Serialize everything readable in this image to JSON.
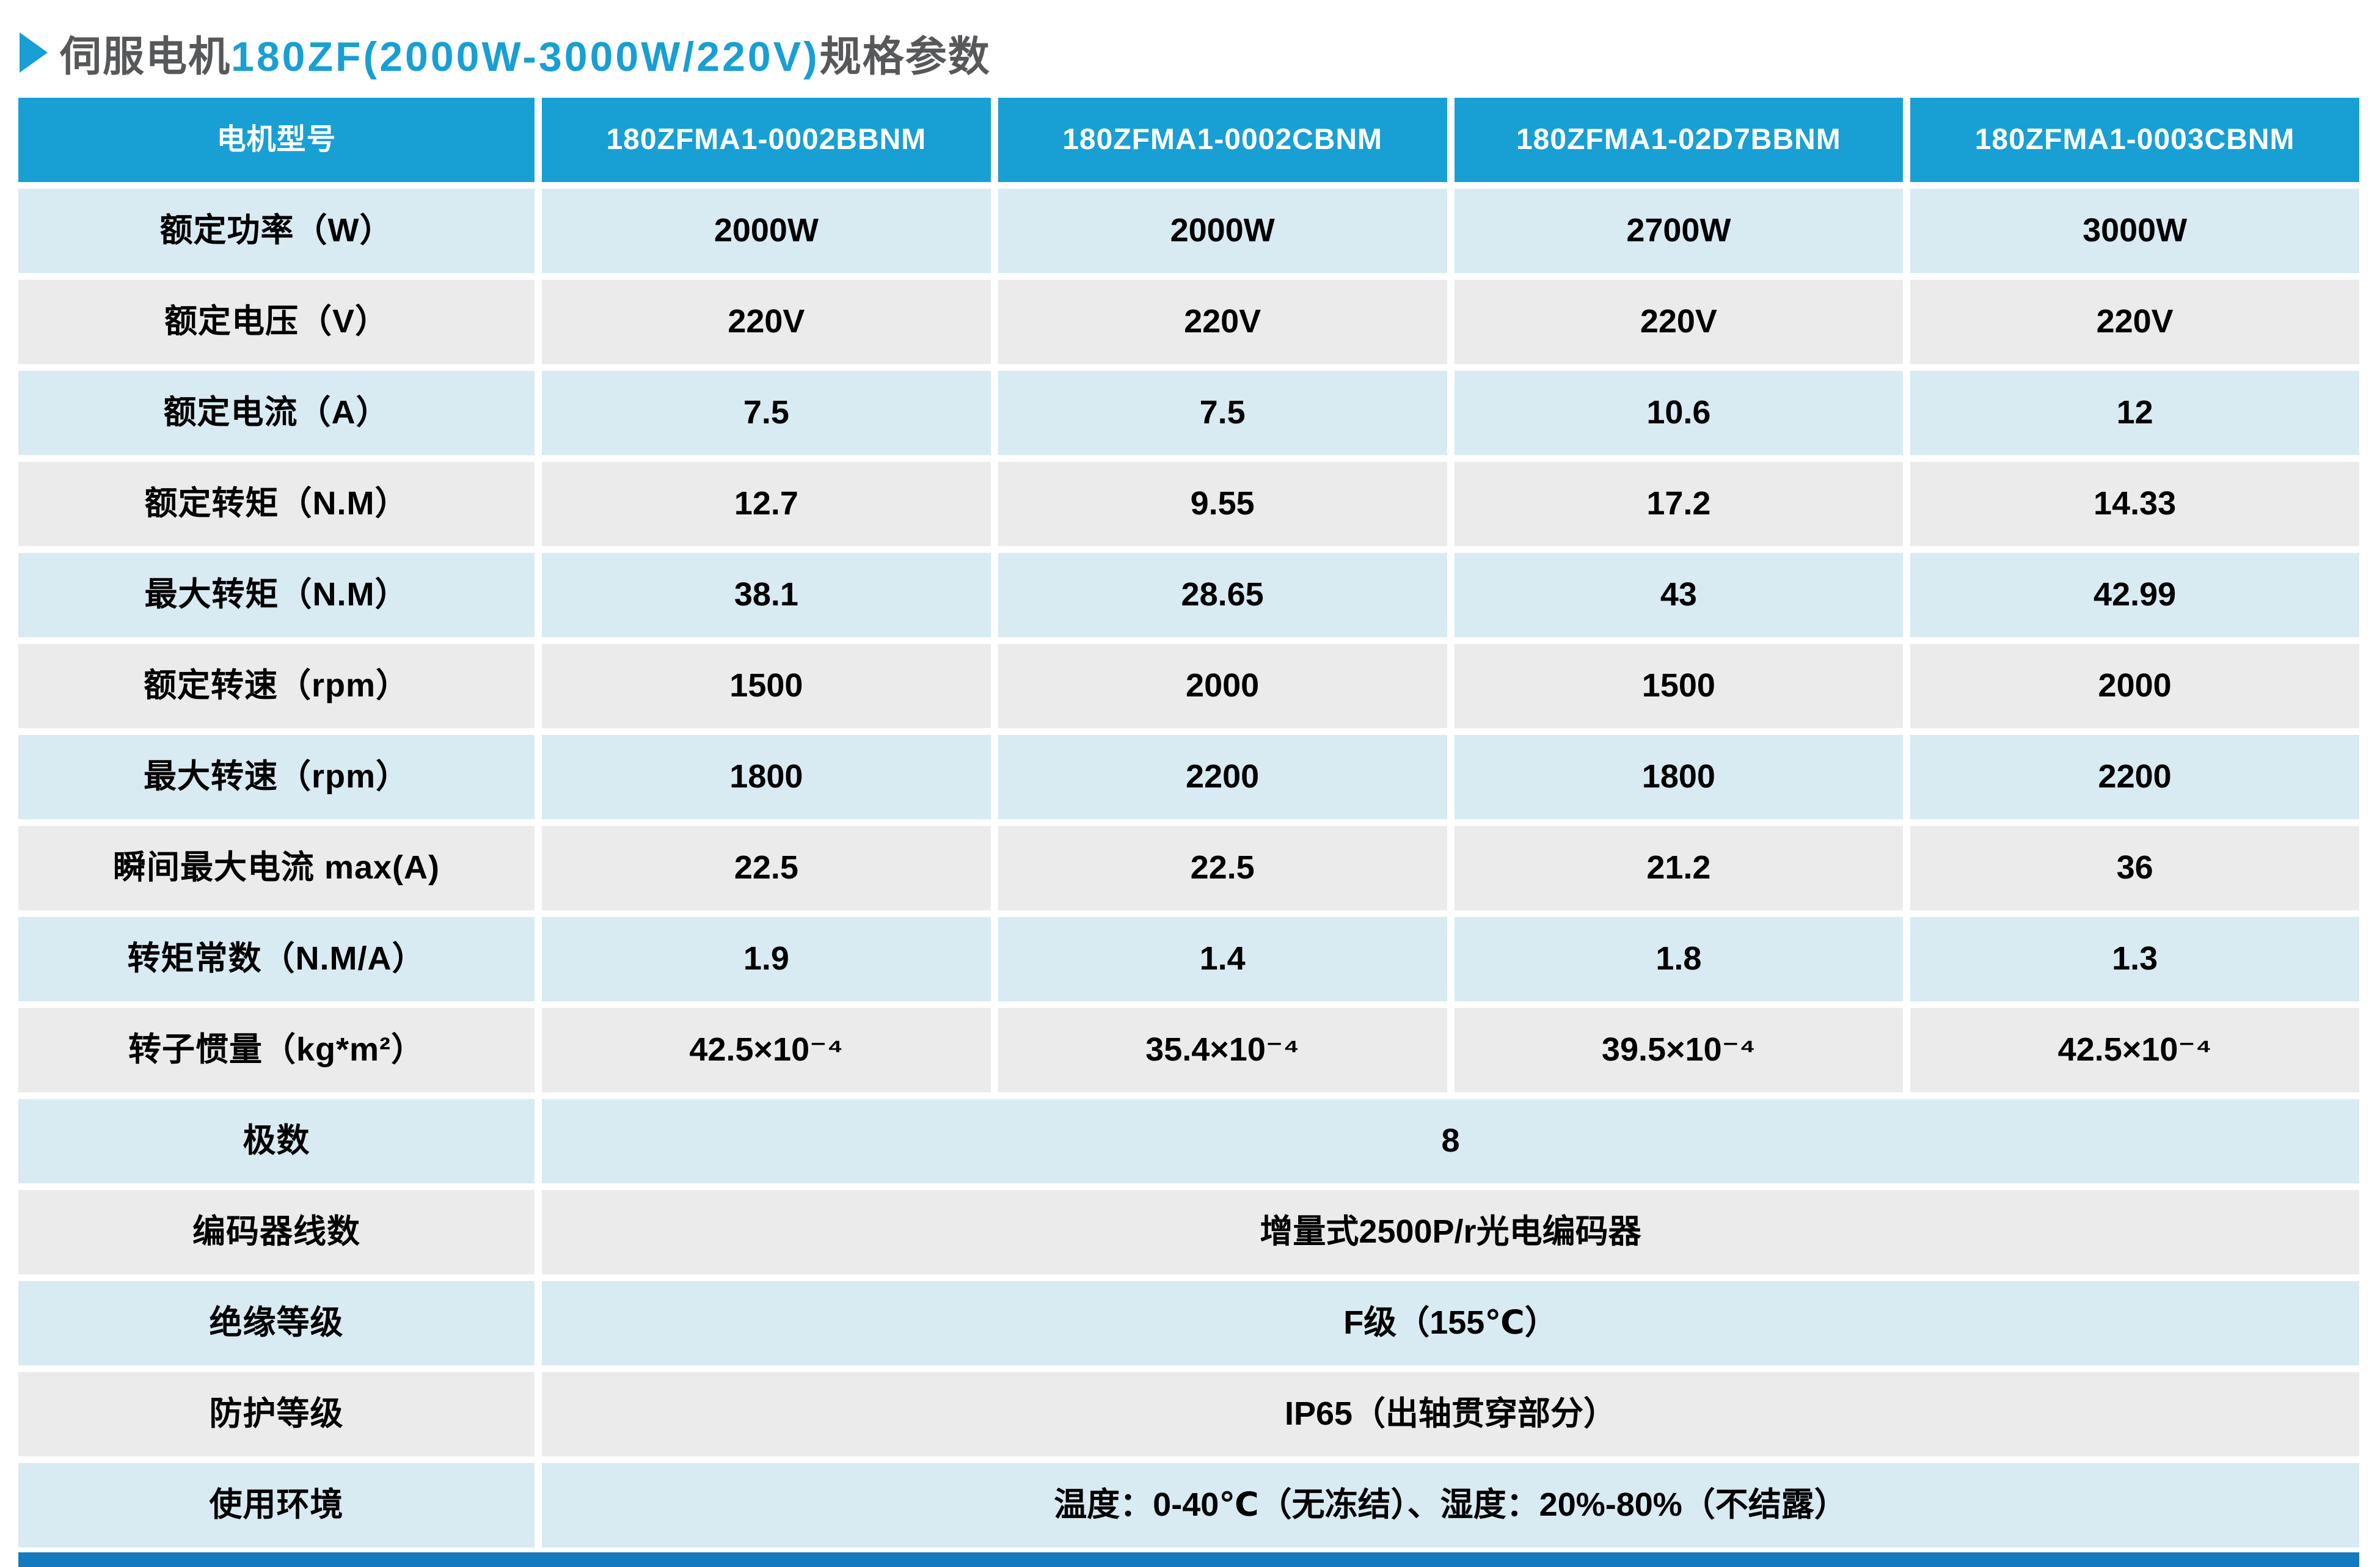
{
  "title": {
    "prefix": "伺服电机",
    "highlight": "180ZF(2000W-3000W/220V)",
    "suffix": "规格参数"
  },
  "colors": {
    "accent_blue": "#189fd4",
    "row_light_blue": "#d8eaf2",
    "row_light_gray": "#ebebeb",
    "title_gray": "#57585a",
    "footer_bar_blue": "#147abd",
    "header_text": "#ffffff"
  },
  "table": {
    "header": [
      "电机型号",
      "180ZFMA1-0002BBNM",
      "180ZFMA1-0002CBNM",
      "180ZFMA1-02D7BBNM",
      "180ZFMA1-0003CBNM"
    ],
    "rows": [
      {
        "label": "额定功率（W）",
        "values": [
          "2000W",
          "2000W",
          "2700W",
          "3000W"
        ]
      },
      {
        "label": "额定电压（V）",
        "values": [
          "220V",
          "220V",
          "220V",
          "220V"
        ]
      },
      {
        "label": "额定电流（A）",
        "values": [
          "7.5",
          "7.5",
          "10.6",
          "12"
        ]
      },
      {
        "label": "额定转矩（N.M）",
        "values": [
          "12.7",
          "9.55",
          "17.2",
          "14.33"
        ]
      },
      {
        "label": "最大转矩（N.M）",
        "values": [
          "38.1",
          "28.65",
          "43",
          "42.99"
        ]
      },
      {
        "label": "额定转速（rpm）",
        "values": [
          "1500",
          "2000",
          "1500",
          "2000"
        ]
      },
      {
        "label": "最大转速（rpm）",
        "values": [
          "1800",
          "2200",
          "1800",
          "2200"
        ]
      },
      {
        "label": "瞬间最大电流 max(A)",
        "values": [
          "22.5",
          "22.5",
          "21.2",
          "36"
        ]
      },
      {
        "label": "转矩常数（N.M/A）",
        "values": [
          "1.9",
          "1.4",
          "1.8",
          "1.3"
        ]
      },
      {
        "label": "转子惯量（kg*m²）",
        "values": [
          "42.5×10⁻⁴",
          "35.4×10⁻⁴",
          "39.5×10⁻⁴",
          "42.5×10⁻⁴"
        ]
      }
    ],
    "merged": [
      {
        "label": "极数",
        "value": "8"
      },
      {
        "label": "编码器线数",
        "value": "增量式2500P/r光电编码器"
      },
      {
        "label": "绝缘等级",
        "value": "F级（155℃）"
      },
      {
        "label": "防护等级",
        "value": "IP65（出轴贯穿部分）"
      },
      {
        "label": "使用环境",
        "value": "温度：0-40℃（无冻结）、湿度：20%-80%（不结露）"
      }
    ]
  }
}
